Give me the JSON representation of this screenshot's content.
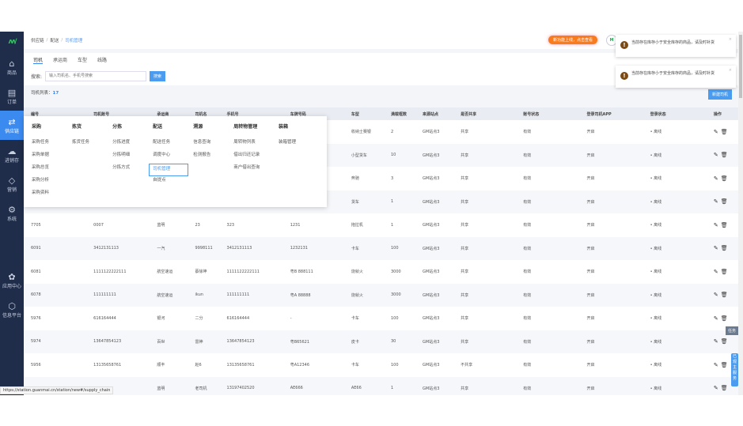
{
  "sidebar": {
    "items": [
      {
        "label": "商品",
        "icon": "bag-icon"
      },
      {
        "label": "订单",
        "icon": "order-icon"
      },
      {
        "label": "供应链",
        "icon": "exchange-icon"
      },
      {
        "label": "进销存",
        "icon": "cloud-icon"
      },
      {
        "label": "营销",
        "icon": "tag-icon"
      },
      {
        "label": "系统",
        "icon": "gear-icon"
      },
      {
        "label": "应用中心",
        "icon": "apps-icon"
      },
      {
        "label": "信息平台",
        "icon": "cube-icon"
      }
    ]
  },
  "breadcrumb": [
    "供应链",
    "配送",
    "司机管理"
  ],
  "header": {
    "new_feature": "新功能上线，点击查看",
    "avatar": "M"
  },
  "tabs": [
    "司机",
    "承运商",
    "车型",
    "线路"
  ],
  "search": {
    "label": "搜索:",
    "placeholder": "输入司机名、手机号搜索",
    "button": "搜索"
  },
  "list": {
    "label": "司机列表：",
    "count": "17",
    "new_button": "新建司机"
  },
  "table": {
    "columns": [
      "编号",
      "司机账号",
      "承运商",
      "司机名",
      "手机号",
      "车牌号码",
      "车型",
      "满载框数",
      "来源站点",
      "是否共享",
      "账号状态",
      "登录司机APP",
      "登录状态",
      "操作"
    ],
    "rows": [
      [
        "",
        "",
        "",
        "",
        "",
        "",
        "收纳士赛银",
        "2",
        "GM站点3",
        "共享",
        "有效",
        "开启",
        "• 离线"
      ],
      [
        "",
        "",
        "",
        "",
        "",
        "",
        "小型货车",
        "10",
        "GM站点3",
        "共享",
        "有效",
        "开启",
        "• 离线"
      ],
      [
        "",
        "",
        "",
        "",
        "",
        "",
        "奔驰",
        "3",
        "GM站点3",
        "共享",
        "有效",
        "开启",
        "• 离线"
      ],
      [
        "",
        "",
        "",
        "",
        "",
        "",
        "货车",
        "1",
        "GM站点3",
        "共享",
        "有效",
        "开启",
        "• 离线"
      ],
      [
        "7705",
        "0007",
        "蓝明",
        "23",
        "323",
        "1231",
        "拖拉机",
        "1",
        "GM站点3",
        "共享",
        "有效",
        "开启",
        "• 离线"
      ],
      [
        "6091",
        "3412131113",
        "一汽",
        "9998111",
        "3412131113",
        "1232131",
        "卡车",
        "100",
        "GM站点3",
        "共享",
        "有效",
        "开启",
        "• 离线"
      ],
      [
        "6081",
        "1111122222111",
        "航空速运",
        "蔡徐坤",
        "1111122222111",
        "粤B 888111",
        "烧就火",
        "3000",
        "GM站点3",
        "共享",
        "有效",
        "开启",
        "• 离线"
      ],
      [
        "6078",
        "111111111",
        "航空速运",
        "ikun",
        "111111111",
        "粤A 88888",
        "烧就火",
        "3000",
        "GM站点3",
        "共享",
        "有效",
        "开启",
        "• 离线"
      ],
      [
        "5976",
        "616164444",
        "银河",
        "二分",
        "616164444",
        "-",
        "卡车",
        "100",
        "GM站点3",
        "共享",
        "有效",
        "开启",
        "• 离线"
      ],
      [
        "5974",
        "13647854123",
        "百世",
        "雷神",
        "13647854123",
        "粤B65621",
        "皮卡",
        "30",
        "GM站点3",
        "共享",
        "有效",
        "开启",
        "• 离线"
      ],
      [
        "5956",
        "13135658761",
        "顺丰",
        "赵6",
        "13135658761",
        "粤A12346",
        "卡车",
        "100",
        "GM站点3",
        "不共享",
        "有效",
        "开启",
        "• 离线"
      ],
      [
        "",
        "",
        "蓝明",
        "老司机",
        "13197402520",
        "AE666",
        "AE66",
        "1",
        "GM站点3",
        "共享",
        "有效",
        "开启",
        "• 离线"
      ]
    ]
  },
  "menu": [
    {
      "title": "采购",
      "items": [
        "采购任务",
        "采购单据",
        "采购总览",
        "采购分析",
        "采购资料"
      ]
    },
    {
      "title": "拣货",
      "items": [
        "拣货任务"
      ]
    },
    {
      "title": "分拣",
      "items": [
        "分拣进度",
        "分拣明细",
        "分拣方式"
      ]
    },
    {
      "title": "配送",
      "items": [
        "配送任务",
        "调度中心",
        "司机管理",
        "自提点"
      ],
      "selected": "司机管理"
    },
    {
      "title": "溯源",
      "items": [
        "信息查询",
        "检测报告"
      ]
    },
    {
      "title": "周转物管理",
      "items": [
        "周转物列表",
        "借出归还记录",
        "商户借出查询"
      ]
    },
    {
      "title": "装箱",
      "items": [
        "装箱管理"
      ]
    }
  ],
  "notices": [
    "当前存在库存小于安全库存的商品，请及时补货",
    "当前存在库存小于安全库存的商品，请及时补货"
  ],
  "floating": {
    "task": "任务",
    "service": "已观主服务"
  },
  "status_url": "https://station.guanmai.cn/station/new#/supply_chain",
  "colors": {
    "sidebar": "#1f2d4b",
    "accent": "#3b8af0",
    "orange": "#f87b1e"
  }
}
